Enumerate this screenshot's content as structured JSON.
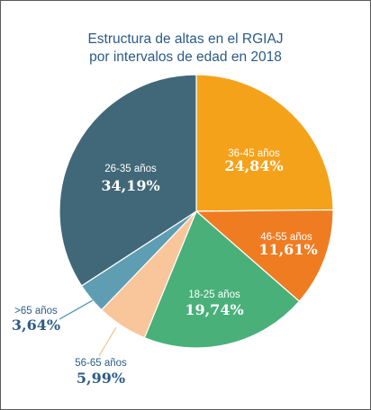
{
  "chart_data": {
    "type": "pie",
    "title": [
      "Estructura de altas en el RGIAJ",
      "por intervalos de edad en 2018"
    ],
    "slices": [
      {
        "label": "36-45 años",
        "value_text": "24,84%",
        "value": 24.84,
        "color": "#f5a21b"
      },
      {
        "label": "46-55 años",
        "value_text": "11,61%",
        "value": 11.61,
        "color": "#f07c22"
      },
      {
        "label": "18-25 años",
        "value_text": "19,74%",
        "value": 19.74,
        "color": "#49b07a"
      },
      {
        "label": "56-65 años",
        "value_text": "5,99%",
        "value": 5.99,
        "color": "#f9c59a"
      },
      {
        "label": ">65 años",
        "value_text": "3,64%",
        "value": 3.64,
        "color": "#5f9db3"
      },
      {
        "label": "26-35 años",
        "value_text": "34,19%",
        "value": 34.19,
        "color": "#416878"
      }
    ]
  }
}
